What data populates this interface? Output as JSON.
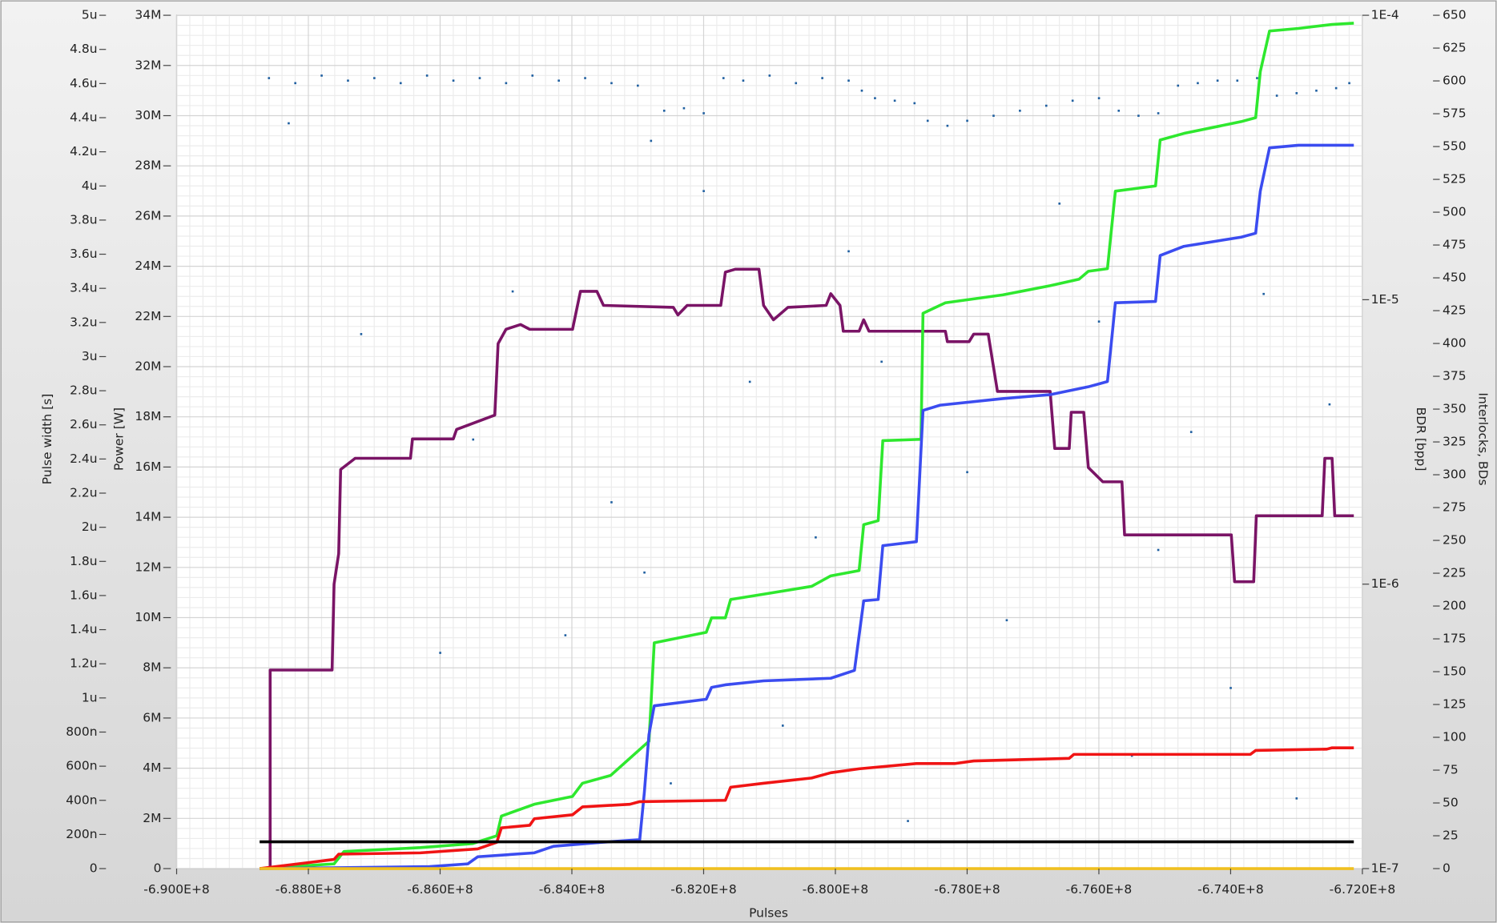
{
  "chart_data": {
    "type": "line",
    "xlabel": "Pulses",
    "ylabel": "Pulse width [s]",
    "y2label": "Power [W]",
    "y3label": "BDR [bpp]",
    "y4label": "Interlocks, BDs",
    "xlim": [
      -690000000,
      -672000000
    ],
    "xticks": [
      {
        "value": -690000000,
        "label": "-6.900E+8"
      },
      {
        "value": -688000000,
        "label": "-6.880E+8"
      },
      {
        "value": -686000000,
        "label": "-6.860E+8"
      },
      {
        "value": -684000000,
        "label": "-6.840E+8"
      },
      {
        "value": -682000000,
        "label": "-6.820E+8"
      },
      {
        "value": -680000000,
        "label": "-6.800E+8"
      },
      {
        "value": -678000000,
        "label": "-6.780E+8"
      },
      {
        "value": -676000000,
        "label": "-6.760E+8"
      },
      {
        "value": -674000000,
        "label": "-6.740E+8"
      },
      {
        "value": -672000000,
        "label": "-6.720E+8"
      }
    ],
    "ylim": [
      0,
      5e-06
    ],
    "yticks": [
      0,
      {
        "value": 2e-07,
        "label": "200n"
      },
      {
        "value": 4e-07,
        "label": "400n"
      },
      {
        "value": 6e-07,
        "label": "600n"
      },
      {
        "value": 8e-07,
        "label": "800n"
      },
      {
        "value": 1e-06,
        "label": "1u"
      },
      {
        "value": 1.2e-06,
        "label": "1.2u"
      },
      {
        "value": 1.4e-06,
        "label": "1.4u"
      },
      {
        "value": 1.6e-06,
        "label": "1.6u"
      },
      {
        "value": 1.8e-06,
        "label": "1.8u"
      },
      {
        "value": 2e-06,
        "label": "2u"
      },
      {
        "value": 2.2e-06,
        "label": "2.2u"
      },
      {
        "value": 2.4e-06,
        "label": "2.4u"
      },
      {
        "value": 2.6e-06,
        "label": "2.6u"
      },
      {
        "value": 2.8e-06,
        "label": "2.8u"
      },
      {
        "value": 3e-06,
        "label": "3u"
      },
      {
        "value": 3.2e-06,
        "label": "3.2u"
      },
      {
        "value": 3.4e-06,
        "label": "3.4u"
      },
      {
        "value": 3.6e-06,
        "label": "3.6u"
      },
      {
        "value": 3.8e-06,
        "label": "3.8u"
      },
      {
        "value": 4e-06,
        "label": "4u"
      },
      {
        "value": 4.2e-06,
        "label": "4.2u"
      },
      {
        "value": 4.4e-06,
        "label": "4.4u"
      },
      {
        "value": 4.6e-06,
        "label": "4.6u"
      },
      {
        "value": 4.8e-06,
        "label": "4.8u"
      },
      {
        "value": 5e-06,
        "label": "5u"
      }
    ],
    "y2lim": [
      0,
      34000000
    ],
    "y2ticks": [
      0,
      {
        "value": 2000000,
        "label": "2M"
      },
      {
        "value": 4000000,
        "label": "4M"
      },
      {
        "value": 6000000,
        "label": "6M"
      },
      {
        "value": 8000000,
        "label": "8M"
      },
      {
        "value": 10000000,
        "label": "10M"
      },
      {
        "value": 12000000,
        "label": "12M"
      },
      {
        "value": 14000000,
        "label": "14M"
      },
      {
        "value": 16000000,
        "label": "16M"
      },
      {
        "value": 18000000,
        "label": "18M"
      },
      {
        "value": 20000000,
        "label": "20M"
      },
      {
        "value": 22000000,
        "label": "22M"
      },
      {
        "value": 24000000,
        "label": "24M"
      },
      {
        "value": 26000000,
        "label": "26M"
      },
      {
        "value": 28000000,
        "label": "28M"
      },
      {
        "value": 30000000,
        "label": "30M"
      },
      {
        "value": 32000000,
        "label": "32M"
      },
      {
        "value": 34000000,
        "label": "34M"
      }
    ],
    "y3lim": [
      1e-07,
      0.0001
    ],
    "y3log": true,
    "y3ticks": [
      {
        "value": 1e-07,
        "label": "1E-7"
      },
      {
        "value": 1e-06,
        "label": "1E-6"
      },
      {
        "value": 1e-05,
        "label": "1E-5"
      },
      {
        "value": 0.0001,
        "label": "1E-4"
      }
    ],
    "y4lim": [
      0,
      650
    ],
    "y4ticks": [
      0,
      25,
      50,
      75,
      100,
      125,
      150,
      175,
      200,
      225,
      250,
      275,
      300,
      325,
      350,
      375,
      400,
      425,
      450,
      475,
      500,
      525,
      550,
      575,
      600,
      625,
      650
    ],
    "grid": true,
    "series": [
      {
        "type": "scatter",
        "axis": "y2",
        "color": "#1f5fa0",
        "x": [
          -688600000,
          -688200000,
          -687800000,
          -687400000,
          -687000000,
          -686600000,
          -686200000,
          -685800000,
          -685400000,
          -685000000,
          -684600000,
          -684200000,
          -683800000,
          -683400000,
          -683000000,
          -682800000,
          -682600000,
          -682300000,
          -682000000,
          -681700000,
          -681400000,
          -681000000,
          -680600000,
          -680200000,
          -679800000,
          -679600000,
          -679400000,
          -679100000,
          -678800000,
          -678600000,
          -678300000,
          -678000000,
          -677600000,
          -677200000,
          -676800000,
          -676400000,
          -676000000,
          -675700000,
          -675400000,
          -675100000,
          -674800000,
          -674500000,
          -674200000,
          -673900000,
          -673600000,
          -673300000,
          -673000000,
          -672700000,
          -672400000,
          -672200000,
          -688300000,
          -687200000,
          -686000000,
          -685500000,
          -684900000,
          -684100000,
          -683400000,
          -682900000,
          -682500000,
          -682000000,
          -681300000,
          -680800000,
          -680300000,
          -679800000,
          -679300000,
          -678900000,
          -678000000,
          -677400000,
          -676600000,
          -676000000,
          -675500000,
          -675100000,
          -674600000,
          -674000000,
          -673500000,
          -673000000,
          -672500000
        ],
        "values": [
          31500000,
          31300000,
          31600000,
          31400000,
          31500000,
          31300000,
          31600000,
          31400000,
          31500000,
          31300000,
          31600000,
          31400000,
          31500000,
          31300000,
          31200000,
          29000000,
          30200000,
          30300000,
          30100000,
          31500000,
          31400000,
          31600000,
          31300000,
          31500000,
          31400000,
          31000000,
          30700000,
          30600000,
          30500000,
          29800000,
          29600000,
          29800000,
          30000000,
          30200000,
          30400000,
          30600000,
          30700000,
          30200000,
          30000000,
          30100000,
          31200000,
          31300000,
          31400000,
          31400000,
          31500000,
          30800000,
          30900000,
          31000000,
          31100000,
          31300000,
          29700000,
          21300000,
          8600000,
          17100000,
          23000000,
          9300000,
          14600000,
          11800000,
          3400000,
          27000000,
          19400000,
          5700000,
          13200000,
          24600000,
          20200000,
          1900000,
          15800000,
          9900000,
          26500000,
          21800000,
          4500000,
          12700000,
          17400000,
          7200000,
          22900000,
          2800000,
          18500000
        ]
      },
      {
        "type": "line",
        "axis": "y3",
        "color": "#7a1466",
        "x": [
          -688580000,
          -688580000,
          -687640000,
          -687610000,
          -687540000,
          -687510000,
          -687290000,
          -686450000,
          -686420000,
          -685800000,
          -685750000,
          -685170000,
          -685120000,
          -685000000,
          -684780000,
          -684640000,
          -683990000,
          -683870000,
          -683620000,
          -683520000,
          -682460000,
          -682390000,
          -682250000,
          -681740000,
          -681670000,
          -681520000,
          -681160000,
          -681090000,
          -680940000,
          -680720000,
          -680140000,
          -680070000,
          -679930000,
          -679880000,
          -679640000,
          -679570000,
          -679490000,
          -678330000,
          -678300000,
          -677970000,
          -677900000,
          -677680000,
          -677540000,
          -676740000,
          -676670000,
          -676450000,
          -676420000,
          -676230000,
          -676160000,
          -675940000,
          -675650000,
          -675610000,
          -673990000,
          -673940000,
          -673650000,
          -673610000,
          -672610000,
          -672570000,
          -672460000,
          -672420000,
          -672130000
        ],
        "values": [
          1e-07,
          4.99e-07,
          4.99e-07,
          1e-06,
          1.28e-06,
          2.53e-06,
          2.77e-06,
          2.77e-06,
          3.24e-06,
          3.24e-06,
          3.5e-06,
          3.93e-06,
          7.01e-06,
          7.87e-06,
          8.18e-06,
          7.87e-06,
          7.87e-06,
          1.07e-05,
          1.07e-05,
          9.55e-06,
          9.4e-06,
          8.84e-06,
          9.55e-06,
          9.55e-06,
          1.25e-05,
          1.28e-05,
          1.28e-05,
          9.55e-06,
          8.5e-06,
          9.4e-06,
          9.55e-06,
          1.05e-05,
          9.55e-06,
          7.75e-06,
          7.75e-06,
          8.5e-06,
          7.75e-06,
          7.75e-06,
          7.12e-06,
          7.12e-06,
          7.57e-06,
          7.57e-06,
          4.76e-06,
          4.76e-06,
          3e-06,
          3e-06,
          4.02e-06,
          4.02e-06,
          2.57e-06,
          2.29e-06,
          2.29e-06,
          1.49e-06,
          1.49e-06,
          1.02e-06,
          1.02e-06,
          1.74e-06,
          1.74e-06,
          2.77e-06,
          2.77e-06,
          1.74e-06,
          1.74e-06
        ]
      },
      {
        "type": "line",
        "axis": "y4",
        "color": "#2ee82e",
        "x": [
          -688740000,
          -687610000,
          -687460000,
          -686300000,
          -685510000,
          -685140000,
          -685070000,
          -684570000,
          -683990000,
          -683840000,
          -683410000,
          -682830000,
          -682800000,
          -682750000,
          -681960000,
          -681880000,
          -681670000,
          -681590000,
          -681090000,
          -680360000,
          -680070000,
          -679640000,
          -679570000,
          -679350000,
          -679280000,
          -678700000,
          -678670000,
          -678330000,
          -677460000,
          -676740000,
          -676300000,
          -676160000,
          -675870000,
          -675750000,
          -675140000,
          -675070000,
          -674710000,
          -673840000,
          -673620000,
          -673550000,
          -673410000,
          -672970000,
          -672460000,
          -672130000
        ],
        "values": [
          0,
          3.6,
          13,
          16,
          19,
          25,
          40,
          49,
          55,
          65,
          71,
          97,
          124,
          172,
          180,
          191,
          191,
          205,
          209,
          215,
          223,
          227,
          262,
          265,
          326,
          327,
          423,
          431,
          437,
          444,
          449,
          455,
          457,
          516,
          520,
          555,
          560,
          569,
          572,
          607,
          638,
          640,
          643,
          644
        ]
      },
      {
        "type": "line",
        "axis": "y4",
        "color": "#3b4cf0",
        "x": [
          -688740000,
          -686160000,
          -685580000,
          -685430000,
          -684570000,
          -684280000,
          -683550000,
          -682970000,
          -682900000,
          -682830000,
          -682750000,
          -681960000,
          -681880000,
          -681670000,
          -681090000,
          -680070000,
          -679710000,
          -679570000,
          -679350000,
          -679280000,
          -678770000,
          -678670000,
          -678410000,
          -677460000,
          -676740000,
          -676160000,
          -675870000,
          -675750000,
          -675140000,
          -675070000,
          -674710000,
          -673840000,
          -673620000,
          -673550000,
          -673410000,
          -672970000,
          -672130000
        ],
        "values": [
          0,
          1.5,
          3.6,
          9,
          12,
          17,
          20,
          22,
          58,
          102,
          124,
          129,
          138,
          140,
          143,
          145,
          151,
          204,
          205,
          246,
          249,
          349,
          353,
          358,
          361,
          367,
          371,
          431,
          432,
          467,
          474,
          481,
          484,
          516,
          549,
          551,
          551
        ]
      },
      {
        "type": "line",
        "axis": "y4",
        "color": "#f01414",
        "x": [
          -688740000,
          -687610000,
          -687540000,
          -686300000,
          -685430000,
          -685140000,
          -685070000,
          -684640000,
          -684570000,
          -683990000,
          -683840000,
          -683120000,
          -682970000,
          -681670000,
          -681590000,
          -681090000,
          -680360000,
          -680070000,
          -679640000,
          -678770000,
          -678190000,
          -677900000,
          -676450000,
          -676380000,
          -673700000,
          -673620000,
          -672540000,
          -672460000,
          -672130000
        ],
        "values": [
          0,
          7,
          11,
          12,
          15,
          20,
          31,
          33,
          38,
          41,
          47,
          49,
          51,
          52,
          62,
          65,
          69,
          73,
          76,
          80,
          80,
          82,
          84,
          87,
          87,
          90,
          91,
          92,
          92
        ]
      },
      {
        "type": "line",
        "axis": "y",
        "color": "#000000",
        "x": [
          -688740000,
          -672130000
        ],
        "values": [
          1.57e-07,
          1.57e-07
        ]
      },
      {
        "type": "line",
        "axis": "y4",
        "color": "#f0c020",
        "x": [
          -688740000,
          -672130000
        ],
        "values": [
          0,
          0
        ]
      }
    ]
  }
}
